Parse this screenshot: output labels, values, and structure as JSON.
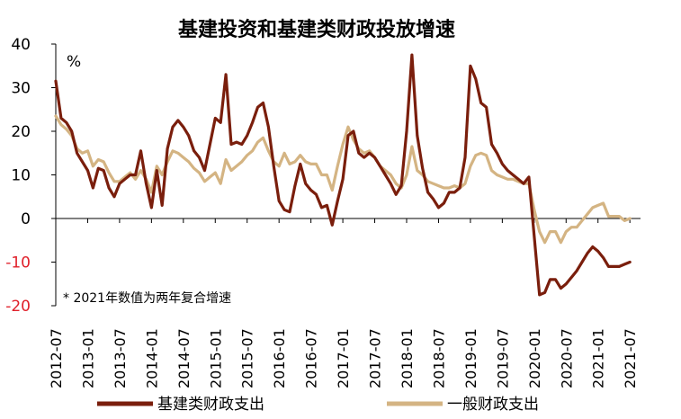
{
  "chart_data": {
    "type": "line",
    "title": "基建投资和基建类财政投放增速",
    "unit": "%",
    "note": "* 2021年数值为两年复合增速",
    "ylim": [
      -20,
      40
    ],
    "yticks": [
      -20,
      -10,
      0,
      10,
      20,
      30,
      40
    ],
    "xlim": [
      "2012-07",
      "2021-09"
    ],
    "xtick_labels": [
      "2012-07",
      "2013-01",
      "2013-07",
      "2014-01",
      "2014-07",
      "2015-01",
      "2015-07",
      "2016-01",
      "2016-07",
      "2017-01",
      "2017-07",
      "2018-01",
      "2018-07",
      "2019-01",
      "2019-07",
      "2020-01",
      "2020-07",
      "2021-01",
      "2021-07"
    ],
    "grid": false,
    "legend": "bottom",
    "series": [
      {
        "name": "基建类财政支出",
        "color": "#7a1e0c",
        "points": [
          [
            "2012-07",
            31.5
          ],
          [
            "2012-08",
            23
          ],
          [
            "2012-09",
            22
          ],
          [
            "2012-10",
            20
          ],
          [
            "2012-11",
            15
          ],
          [
            "2012-12",
            13
          ],
          [
            "2013-01",
            11
          ],
          [
            "2013-02",
            7
          ],
          [
            "2013-03",
            11.5
          ],
          [
            "2013-04",
            11
          ],
          [
            "2013-05",
            7
          ],
          [
            "2013-06",
            5
          ],
          [
            "2013-07",
            8
          ],
          [
            "2013-08",
            9
          ],
          [
            "2013-09",
            10
          ],
          [
            "2013-10",
            10
          ],
          [
            "2013-11",
            15.5
          ],
          [
            "2013-12",
            8
          ],
          [
            "2014-01",
            2.5
          ],
          [
            "2014-02",
            11
          ],
          [
            "2014-03",
            3
          ],
          [
            "2014-04",
            16
          ],
          [
            "2014-05",
            21
          ],
          [
            "2014-06",
            22.5
          ],
          [
            "2014-07",
            21
          ],
          [
            "2014-08",
            19
          ],
          [
            "2014-09",
            15.5
          ],
          [
            "2014-10",
            14
          ],
          [
            "2014-11",
            11
          ],
          [
            "2014-12",
            17
          ],
          [
            "2015-01",
            23
          ],
          [
            "2015-02",
            22
          ],
          [
            "2015-03",
            33
          ],
          [
            "2015-04",
            17
          ],
          [
            "2015-05",
            17.5
          ],
          [
            "2015-06",
            17
          ],
          [
            "2015-07",
            19
          ],
          [
            "2015-08",
            22
          ],
          [
            "2015-09",
            25.5
          ],
          [
            "2015-10",
            26.5
          ],
          [
            "2015-11",
            21
          ],
          [
            "2015-12",
            12
          ],
          [
            "2016-01",
            4
          ],
          [
            "2016-02",
            2
          ],
          [
            "2016-03",
            1.5
          ],
          [
            "2016-04",
            7.5
          ],
          [
            "2016-05",
            12.5
          ],
          [
            "2016-06",
            8
          ],
          [
            "2016-07",
            6.5
          ],
          [
            "2016-08",
            5.5
          ],
          [
            "2016-09",
            2.5
          ],
          [
            "2016-10",
            3
          ],
          [
            "2016-11",
            -1.5
          ],
          [
            "2016-12",
            4
          ],
          [
            "2017-01",
            9
          ],
          [
            "2017-02",
            19
          ],
          [
            "2017-03",
            20
          ],
          [
            "2017-04",
            15
          ],
          [
            "2017-05",
            14
          ],
          [
            "2017-06",
            15
          ],
          [
            "2017-07",
            14
          ],
          [
            "2017-08",
            12
          ],
          [
            "2017-09",
            10
          ],
          [
            "2017-10",
            8
          ],
          [
            "2017-11",
            5.5
          ],
          [
            "2017-12",
            7.5
          ],
          [
            "2018-01",
            20
          ],
          [
            "2018-02",
            37.5
          ],
          [
            "2018-03",
            19
          ],
          [
            "2018-04",
            11.5
          ],
          [
            "2018-05",
            6
          ],
          [
            "2018-06",
            4.5
          ],
          [
            "2018-07",
            2.5
          ],
          [
            "2018-08",
            3.5
          ],
          [
            "2018-09",
            6
          ],
          [
            "2018-10",
            6
          ],
          [
            "2018-11",
            7
          ],
          [
            "2018-12",
            14
          ],
          [
            "2019-01",
            35
          ],
          [
            "2019-02",
            32
          ],
          [
            "2019-03",
            26.5
          ],
          [
            "2019-04",
            25.5
          ],
          [
            "2019-05",
            17
          ],
          [
            "2019-06",
            15
          ],
          [
            "2019-07",
            12.5
          ],
          [
            "2019-08",
            11
          ],
          [
            "2019-09",
            10
          ],
          [
            "2019-10",
            9
          ],
          [
            "2019-11",
            8
          ],
          [
            "2019-12",
            9.5
          ],
          [
            "2020-01",
            -4
          ],
          [
            "2020-02",
            -17.5
          ],
          [
            "2020-03",
            -17
          ],
          [
            "2020-04",
            -14
          ],
          [
            "2020-05",
            -14
          ],
          [
            "2020-06",
            -16
          ],
          [
            "2020-07",
            -15
          ],
          [
            "2020-08",
            -13.5
          ],
          [
            "2020-09",
            -12
          ],
          [
            "2020-10",
            -10
          ],
          [
            "2020-11",
            -8
          ],
          [
            "2020-12",
            -6.5
          ],
          [
            "2021-01",
            -7.5
          ],
          [
            "2021-02",
            -9
          ],
          [
            "2021-03",
            -11
          ],
          [
            "2021-04",
            -11
          ],
          [
            "2021-05",
            -11
          ],
          [
            "2021-06",
            -10.5
          ],
          [
            "2021-07",
            -10
          ]
        ]
      },
      {
        "name": "一般财政支出",
        "color": "#d4b483",
        "points": [
          [
            "2012-07",
            23.5
          ],
          [
            "2012-08",
            21.5
          ],
          [
            "2012-09",
            20.5
          ],
          [
            "2012-10",
            19
          ],
          [
            "2012-11",
            16
          ],
          [
            "2012-12",
            15
          ],
          [
            "2013-01",
            15.5
          ],
          [
            "2013-02",
            12
          ],
          [
            "2013-03",
            13.5
          ],
          [
            "2013-04",
            13
          ],
          [
            "2013-05",
            10.5
          ],
          [
            "2013-06",
            8.5
          ],
          [
            "2013-07",
            8.5
          ],
          [
            "2013-08",
            9.5
          ],
          [
            "2013-09",
            10.5
          ],
          [
            "2013-10",
            9
          ],
          [
            "2013-11",
            11
          ],
          [
            "2013-12",
            9
          ],
          [
            "2014-01",
            6
          ],
          [
            "2014-02",
            12
          ],
          [
            "2014-03",
            10
          ],
          [
            "2014-04",
            13
          ],
          [
            "2014-05",
            15.5
          ],
          [
            "2014-06",
            15
          ],
          [
            "2014-07",
            14
          ],
          [
            "2014-08",
            13
          ],
          [
            "2014-09",
            11.5
          ],
          [
            "2014-10",
            10.5
          ],
          [
            "2014-11",
            8.5
          ],
          [
            "2014-12",
            9.5
          ],
          [
            "2015-01",
            10.5
          ],
          [
            "2015-02",
            8
          ],
          [
            "2015-03",
            13.5
          ],
          [
            "2015-04",
            11
          ],
          [
            "2015-05",
            12
          ],
          [
            "2015-06",
            13
          ],
          [
            "2015-07",
            14.5
          ],
          [
            "2015-08",
            15.5
          ],
          [
            "2015-09",
            17.5
          ],
          [
            "2015-10",
            18.5
          ],
          [
            "2015-11",
            15.5
          ],
          [
            "2015-12",
            13
          ],
          [
            "2016-01",
            12
          ],
          [
            "2016-02",
            15
          ],
          [
            "2016-03",
            12.5
          ],
          [
            "2016-04",
            13
          ],
          [
            "2016-05",
            14.5
          ],
          [
            "2016-06",
            13
          ],
          [
            "2016-07",
            12.5
          ],
          [
            "2016-08",
            12.5
          ],
          [
            "2016-09",
            10
          ],
          [
            "2016-10",
            10
          ],
          [
            "2016-11",
            6.5
          ],
          [
            "2016-12",
            12
          ],
          [
            "2017-01",
            17
          ],
          [
            "2017-02",
            21
          ],
          [
            "2017-03",
            18
          ],
          [
            "2017-04",
            16
          ],
          [
            "2017-05",
            15
          ],
          [
            "2017-06",
            15.5
          ],
          [
            "2017-07",
            14
          ],
          [
            "2017-08",
            12
          ],
          [
            "2017-09",
            11
          ],
          [
            "2017-10",
            10
          ],
          [
            "2017-11",
            8
          ],
          [
            "2017-12",
            7
          ],
          [
            "2018-01",
            10
          ],
          [
            "2018-02",
            16.5
          ],
          [
            "2018-03",
            11
          ],
          [
            "2018-04",
            10
          ],
          [
            "2018-05",
            8.5
          ],
          [
            "2018-06",
            8
          ],
          [
            "2018-07",
            7.5
          ],
          [
            "2018-08",
            7
          ],
          [
            "2018-09",
            7
          ],
          [
            "2018-10",
            7.5
          ],
          [
            "2018-11",
            7
          ],
          [
            "2018-12",
            8
          ],
          [
            "2019-01",
            12
          ],
          [
            "2019-02",
            14.5
          ],
          [
            "2019-03",
            15
          ],
          [
            "2019-04",
            14.5
          ],
          [
            "2019-05",
            11
          ],
          [
            "2019-06",
            10
          ],
          [
            "2019-07",
            9.5
          ],
          [
            "2019-08",
            9
          ],
          [
            "2019-09",
            9
          ],
          [
            "2019-10",
            8.5
          ],
          [
            "2019-11",
            8
          ],
          [
            "2019-12",
            8
          ],
          [
            "2020-01",
            2
          ],
          [
            "2020-02",
            -3
          ],
          [
            "2020-03",
            -5.5
          ],
          [
            "2020-04",
            -3
          ],
          [
            "2020-05",
            -3
          ],
          [
            "2020-06",
            -5.5
          ],
          [
            "2020-07",
            -3
          ],
          [
            "2020-08",
            -2
          ],
          [
            "2020-09",
            -2
          ],
          [
            "2020-10",
            -0.5
          ],
          [
            "2020-11",
            1
          ],
          [
            "2020-12",
            2.5
          ],
          [
            "2021-01",
            3
          ],
          [
            "2021-02",
            3.5
          ],
          [
            "2021-03",
            0.5
          ],
          [
            "2021-04",
            0.5
          ],
          [
            "2021-05",
            0.5
          ],
          [
            "2021-06",
            -0.5
          ],
          [
            "2021-07",
            0
          ]
        ]
      }
    ]
  }
}
